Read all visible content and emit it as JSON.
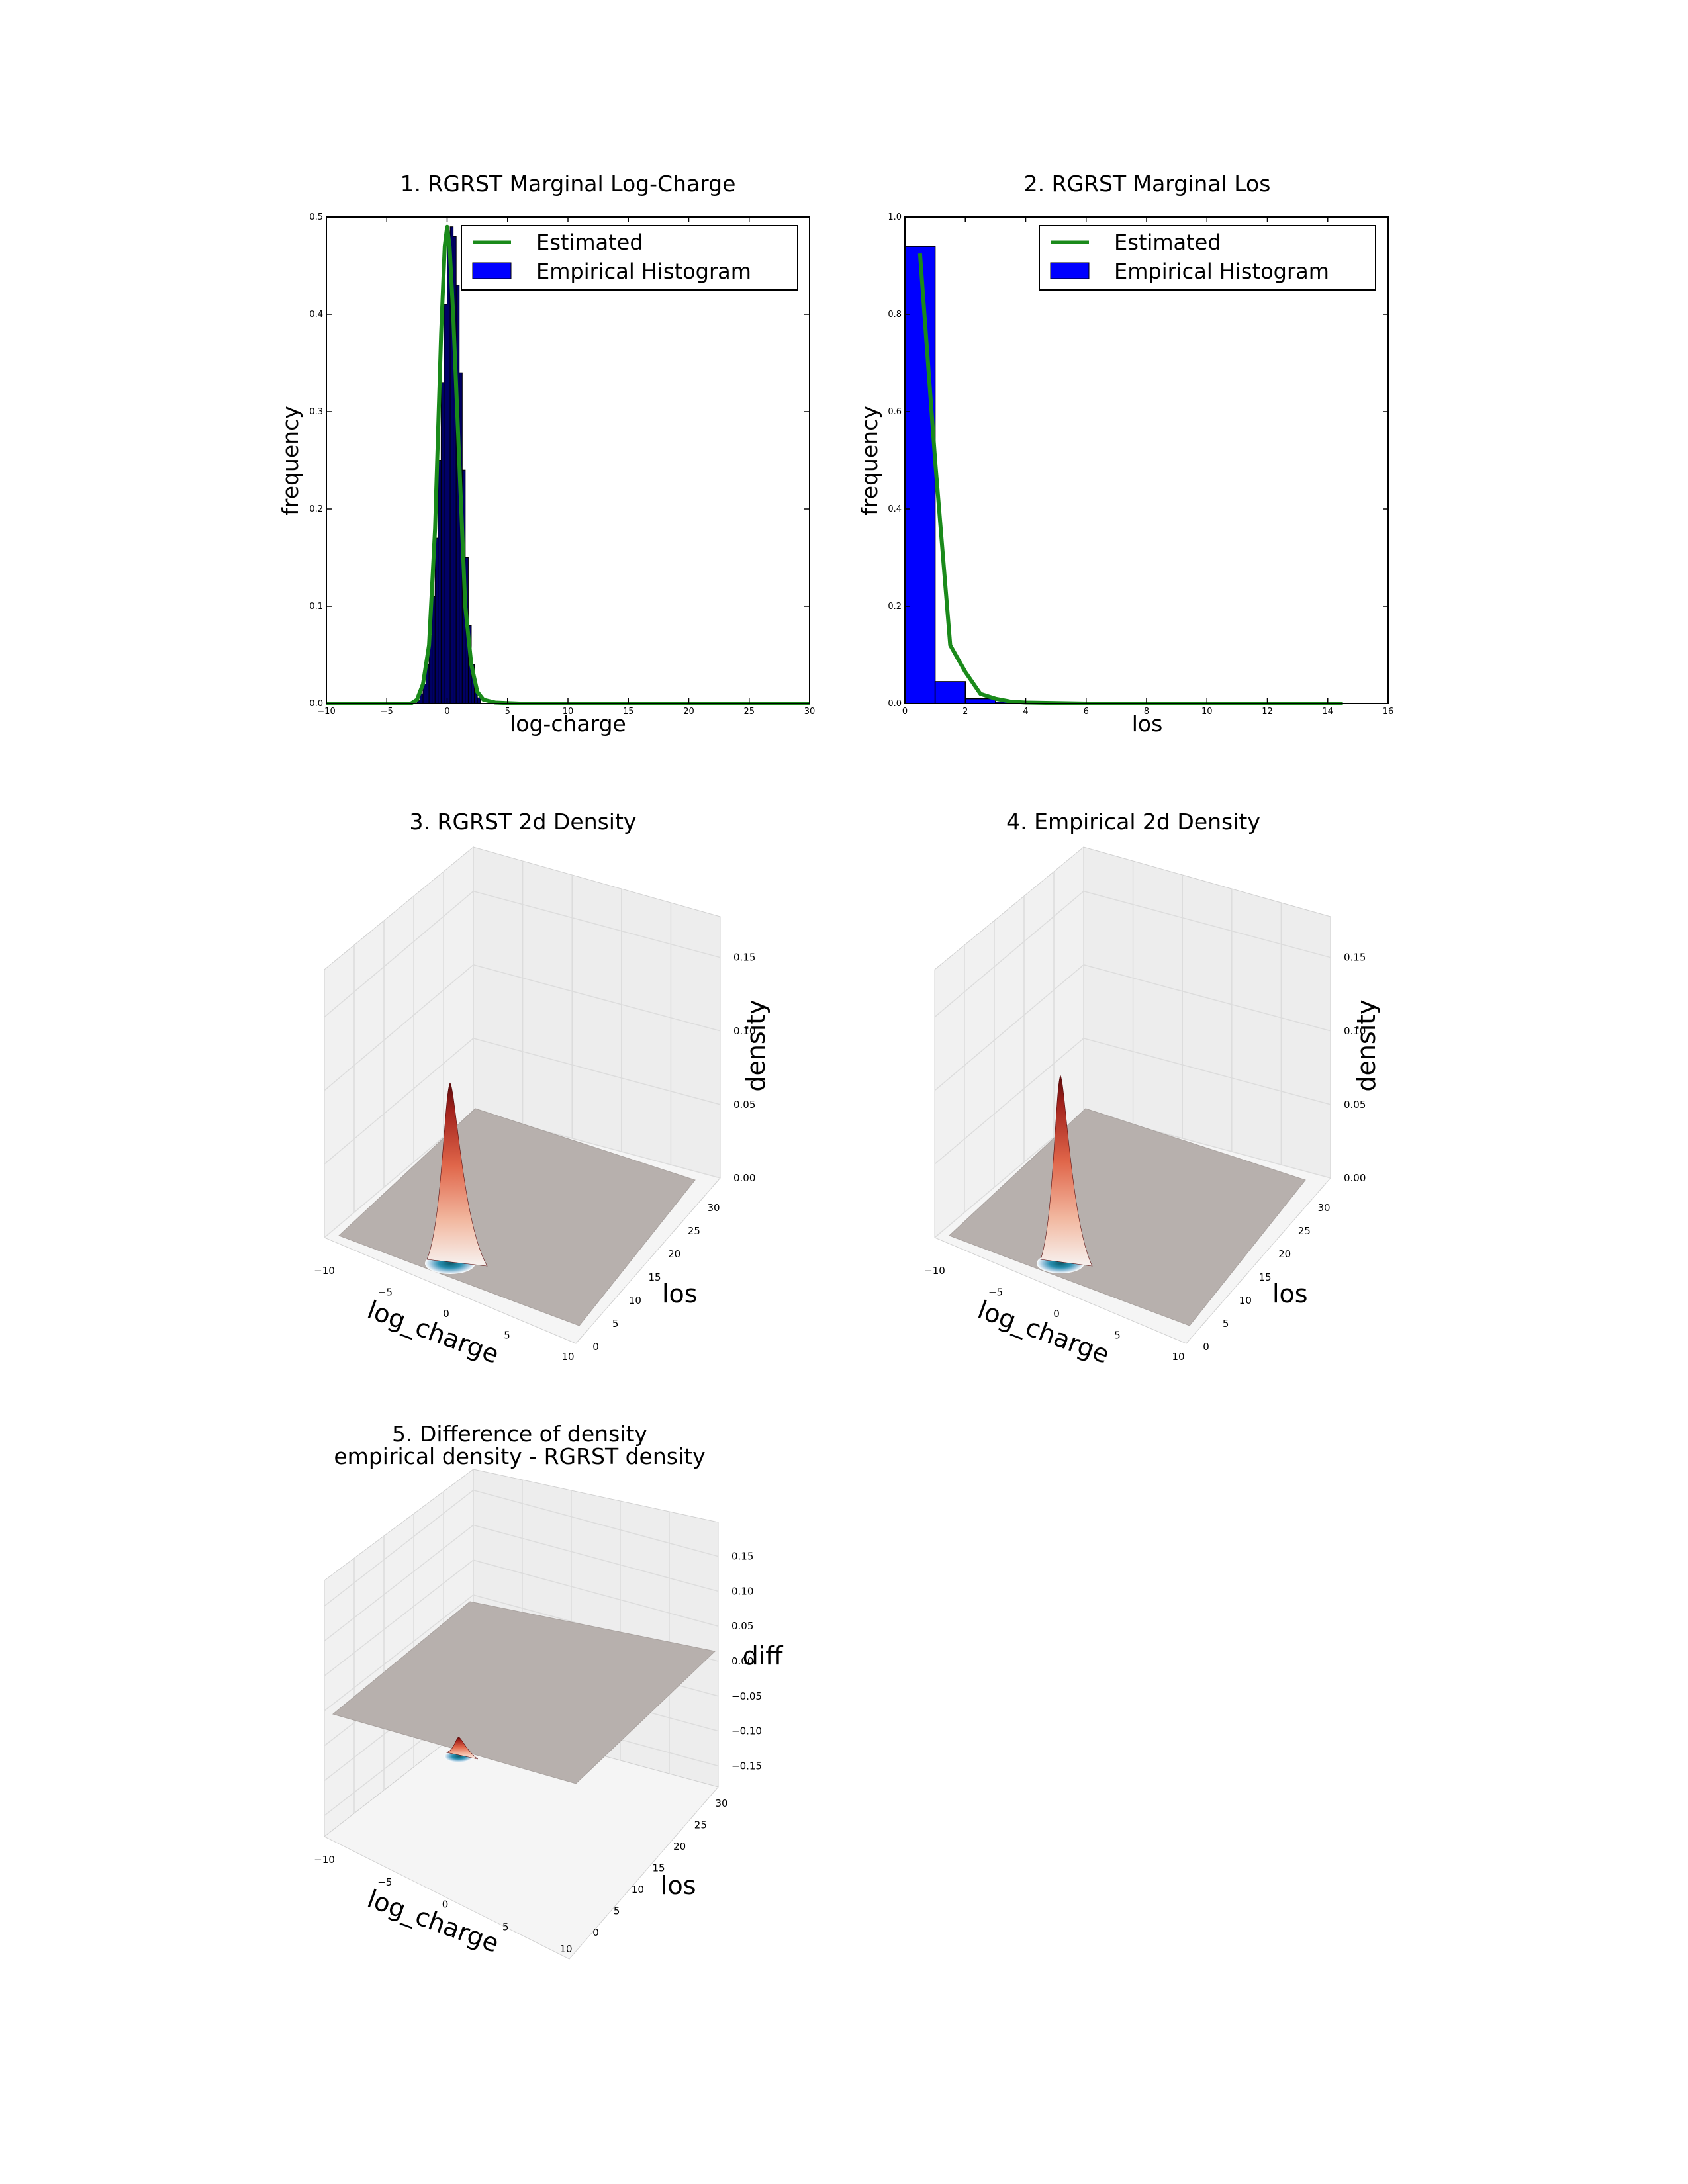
{
  "chart_data": [
    {
      "type": "line",
      "title": "1. RGRST Marginal Log-Charge",
      "xlabel": "log-charge",
      "ylabel": "frequency",
      "xlim": [
        -10,
        30
      ],
      "ylim": [
        0,
        0.5
      ],
      "xticks": [
        "−10",
        "−5",
        "0",
        "5",
        "10",
        "15",
        "20",
        "25",
        "30"
      ],
      "yticks": [
        "0.0",
        "0.1",
        "0.2",
        "0.3",
        "0.4",
        "0.5"
      ],
      "legend_position": "top-right",
      "legend": [
        "Estimated",
        "Empirical Histogram"
      ],
      "colors": {
        "estimated": "#1a8a1a",
        "histogram": "#000066"
      },
      "series": [
        {
          "name": "Estimated",
          "x": [
            -10,
            -3,
            -2.5,
            -2,
            -1.5,
            -1,
            -0.5,
            -0.2,
            0,
            0.2,
            0.5,
            1,
            1.5,
            2,
            2.5,
            3,
            4,
            6,
            30
          ],
          "y": [
            0,
            0,
            0.004,
            0.02,
            0.06,
            0.18,
            0.38,
            0.47,
            0.49,
            0.47,
            0.4,
            0.25,
            0.1,
            0.04,
            0.012,
            0.004,
            0.001,
            0,
            0
          ]
        },
        {
          "name": "Empirical Histogram",
          "bin_width": 0.25,
          "bin_edges_start": -2.5,
          "values": [
            0.003,
            0.01,
            0.02,
            0.04,
            0.07,
            0.11,
            0.17,
            0.25,
            0.33,
            0.41,
            0.47,
            0.49,
            0.48,
            0.43,
            0.34,
            0.24,
            0.15,
            0.08,
            0.04,
            0.015,
            0.006
          ]
        }
      ]
    },
    {
      "type": "bar",
      "title": "2. RGRST Marginal Los",
      "xlabel": "los",
      "ylabel": "frequency",
      "xlim": [
        0,
        16
      ],
      "ylim": [
        0,
        1.0
      ],
      "xticks": [
        "0",
        "2",
        "4",
        "6",
        "8",
        "10",
        "12",
        "14",
        "16"
      ],
      "yticks": [
        "0.0",
        "0.2",
        "0.4",
        "0.6",
        "0.8",
        "1.0"
      ],
      "legend_position": "top-right",
      "legend": [
        "Estimated",
        "Empirical Histogram"
      ],
      "colors": {
        "estimated": "#1a8a1a",
        "histogram": "#0000ff"
      },
      "series": [
        {
          "name": "Estimated",
          "x": [
            0.5,
            1,
            1.5,
            2,
            2.5,
            3,
            3.5,
            4,
            5,
            6,
            8,
            10,
            12,
            14.5
          ],
          "y": [
            0.925,
            0.5,
            0.12,
            0.065,
            0.02,
            0.01,
            0.004,
            0.002,
            0.001,
            0,
            0,
            0,
            0,
            0
          ]
        },
        {
          "name": "Empirical Histogram",
          "bin_width": 1,
          "bin_edges": [
            0,
            1,
            2,
            3,
            4
          ],
          "values": [
            0.94,
            0.045,
            0.01,
            0.003
          ]
        }
      ]
    },
    {
      "type": "surface3d",
      "title": "3. RGRST 2d Density",
      "xlabel": "log_charge",
      "ylabel": "los",
      "zlabel": "density",
      "xticks": [
        "−10",
        "−5",
        "0",
        "5",
        "10"
      ],
      "yticks": [
        "0",
        "5",
        "10",
        "15",
        "20",
        "25",
        "30"
      ],
      "zticks": [
        "0.00",
        "0.05",
        "0.10",
        "0.15"
      ],
      "xlim": [
        -10,
        10
      ],
      "ylim": [
        0,
        30
      ],
      "zlim": [
        0,
        0.18
      ],
      "peak": {
        "x": 0,
        "y": 0.5,
        "z": 0.12
      }
    },
    {
      "type": "surface3d",
      "title": "4. Empirical 2d Density",
      "xlabel": "log_charge",
      "ylabel": "los",
      "zlabel": "density",
      "xticks": [
        "−10",
        "−5",
        "0",
        "5",
        "10"
      ],
      "yticks": [
        "0",
        "5",
        "10",
        "15",
        "20",
        "25",
        "30"
      ],
      "zticks": [
        "0.00",
        "0.05",
        "0.10",
        "0.15"
      ],
      "xlim": [
        -10,
        10
      ],
      "ylim": [
        0,
        30
      ],
      "zlim": [
        0,
        0.18
      ],
      "peak": {
        "x": 0,
        "y": 0.5,
        "z": 0.125
      }
    },
    {
      "type": "surface3d",
      "title": "5. Difference of density",
      "subtitle": "empirical density - RGRST density",
      "xlabel": "log_charge",
      "ylabel": "los",
      "zlabel": "diff",
      "xticks": [
        "−10",
        "−5",
        "0",
        "5",
        "10"
      ],
      "yticks": [
        "0",
        "5",
        "10",
        "15",
        "20",
        "25",
        "30"
      ],
      "zticks": [
        "−0.15",
        "−0.10",
        "−0.05",
        "0.00",
        "0.05",
        "0.10",
        "0.15"
      ],
      "xlim": [
        -10,
        10
      ],
      "ylim": [
        0,
        30
      ],
      "zlim": [
        -0.18,
        0.18
      ],
      "peak": {
        "x": 0,
        "y": 0.5,
        "z": 0.012
      }
    }
  ]
}
